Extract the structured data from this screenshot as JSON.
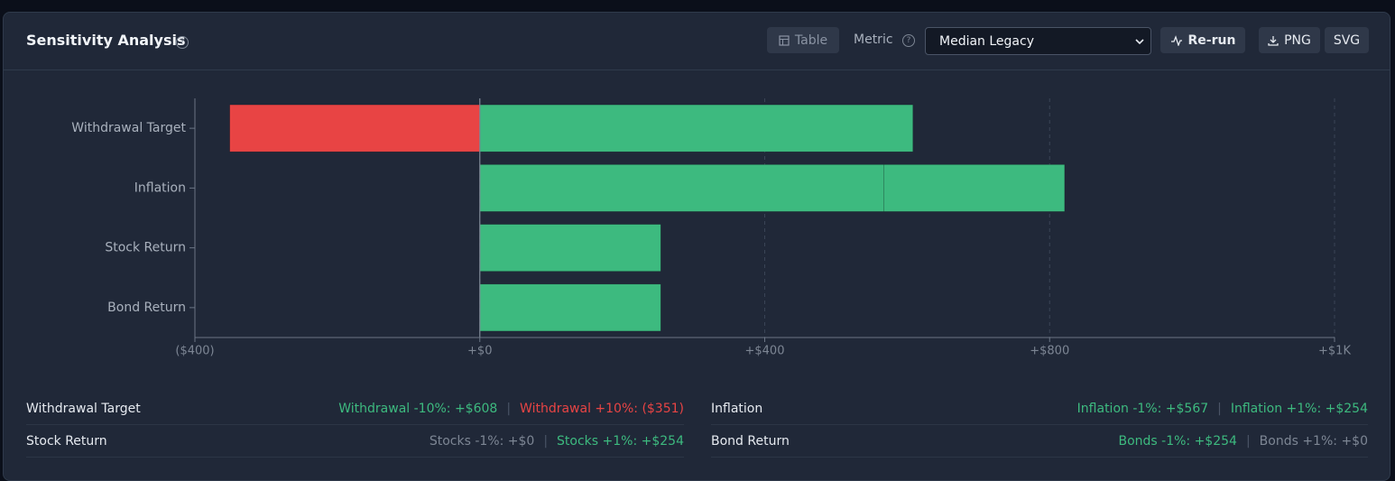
{
  "header": {
    "title": "Sensitivity Analysis",
    "table_button": "Table",
    "metric_label": "Metric",
    "metric_value": "Median Legacy",
    "rerun_button": "Re-run",
    "png_button": "PNG",
    "svg_button": "SVG"
  },
  "chart_data": {
    "type": "tornado",
    "categories": [
      "Withdrawal Target",
      "Inflation",
      "Stock Return",
      "Bond Return"
    ],
    "series": [
      {
        "values": [
          608,
          567,
          0,
          254
        ],
        "value_labels": [
          "+$608",
          "+$567",
          "+$0",
          "+$254"
        ],
        "scenario_labels": [
          "Withdrawal -10%",
          "Inflation -1%",
          "Stocks -1%",
          "Bonds -1%"
        ]
      },
      {
        "values": [
          -351,
          254,
          254,
          0
        ],
        "value_labels": [
          "($351)",
          "+$254",
          "+$254",
          "+$0"
        ],
        "scenario_labels": [
          "Withdrawal +10%",
          "Inflation +1%",
          "Stocks +1%",
          "Bonds +1%"
        ]
      }
    ],
    "positive_color": "#3dba7f",
    "negative_color": "#e84444",
    "zero_color": "#7d8694",
    "xlim": [
      -400,
      1200
    ],
    "xticks": [
      {
        "value": -400,
        "label": "($400)"
      },
      {
        "value": 0,
        "label": "+$0"
      },
      {
        "value": 400,
        "label": "+$400"
      },
      {
        "value": 800,
        "label": "+$800"
      },
      {
        "value": 1200,
        "label": "+$1K"
      }
    ],
    "grid": true
  }
}
